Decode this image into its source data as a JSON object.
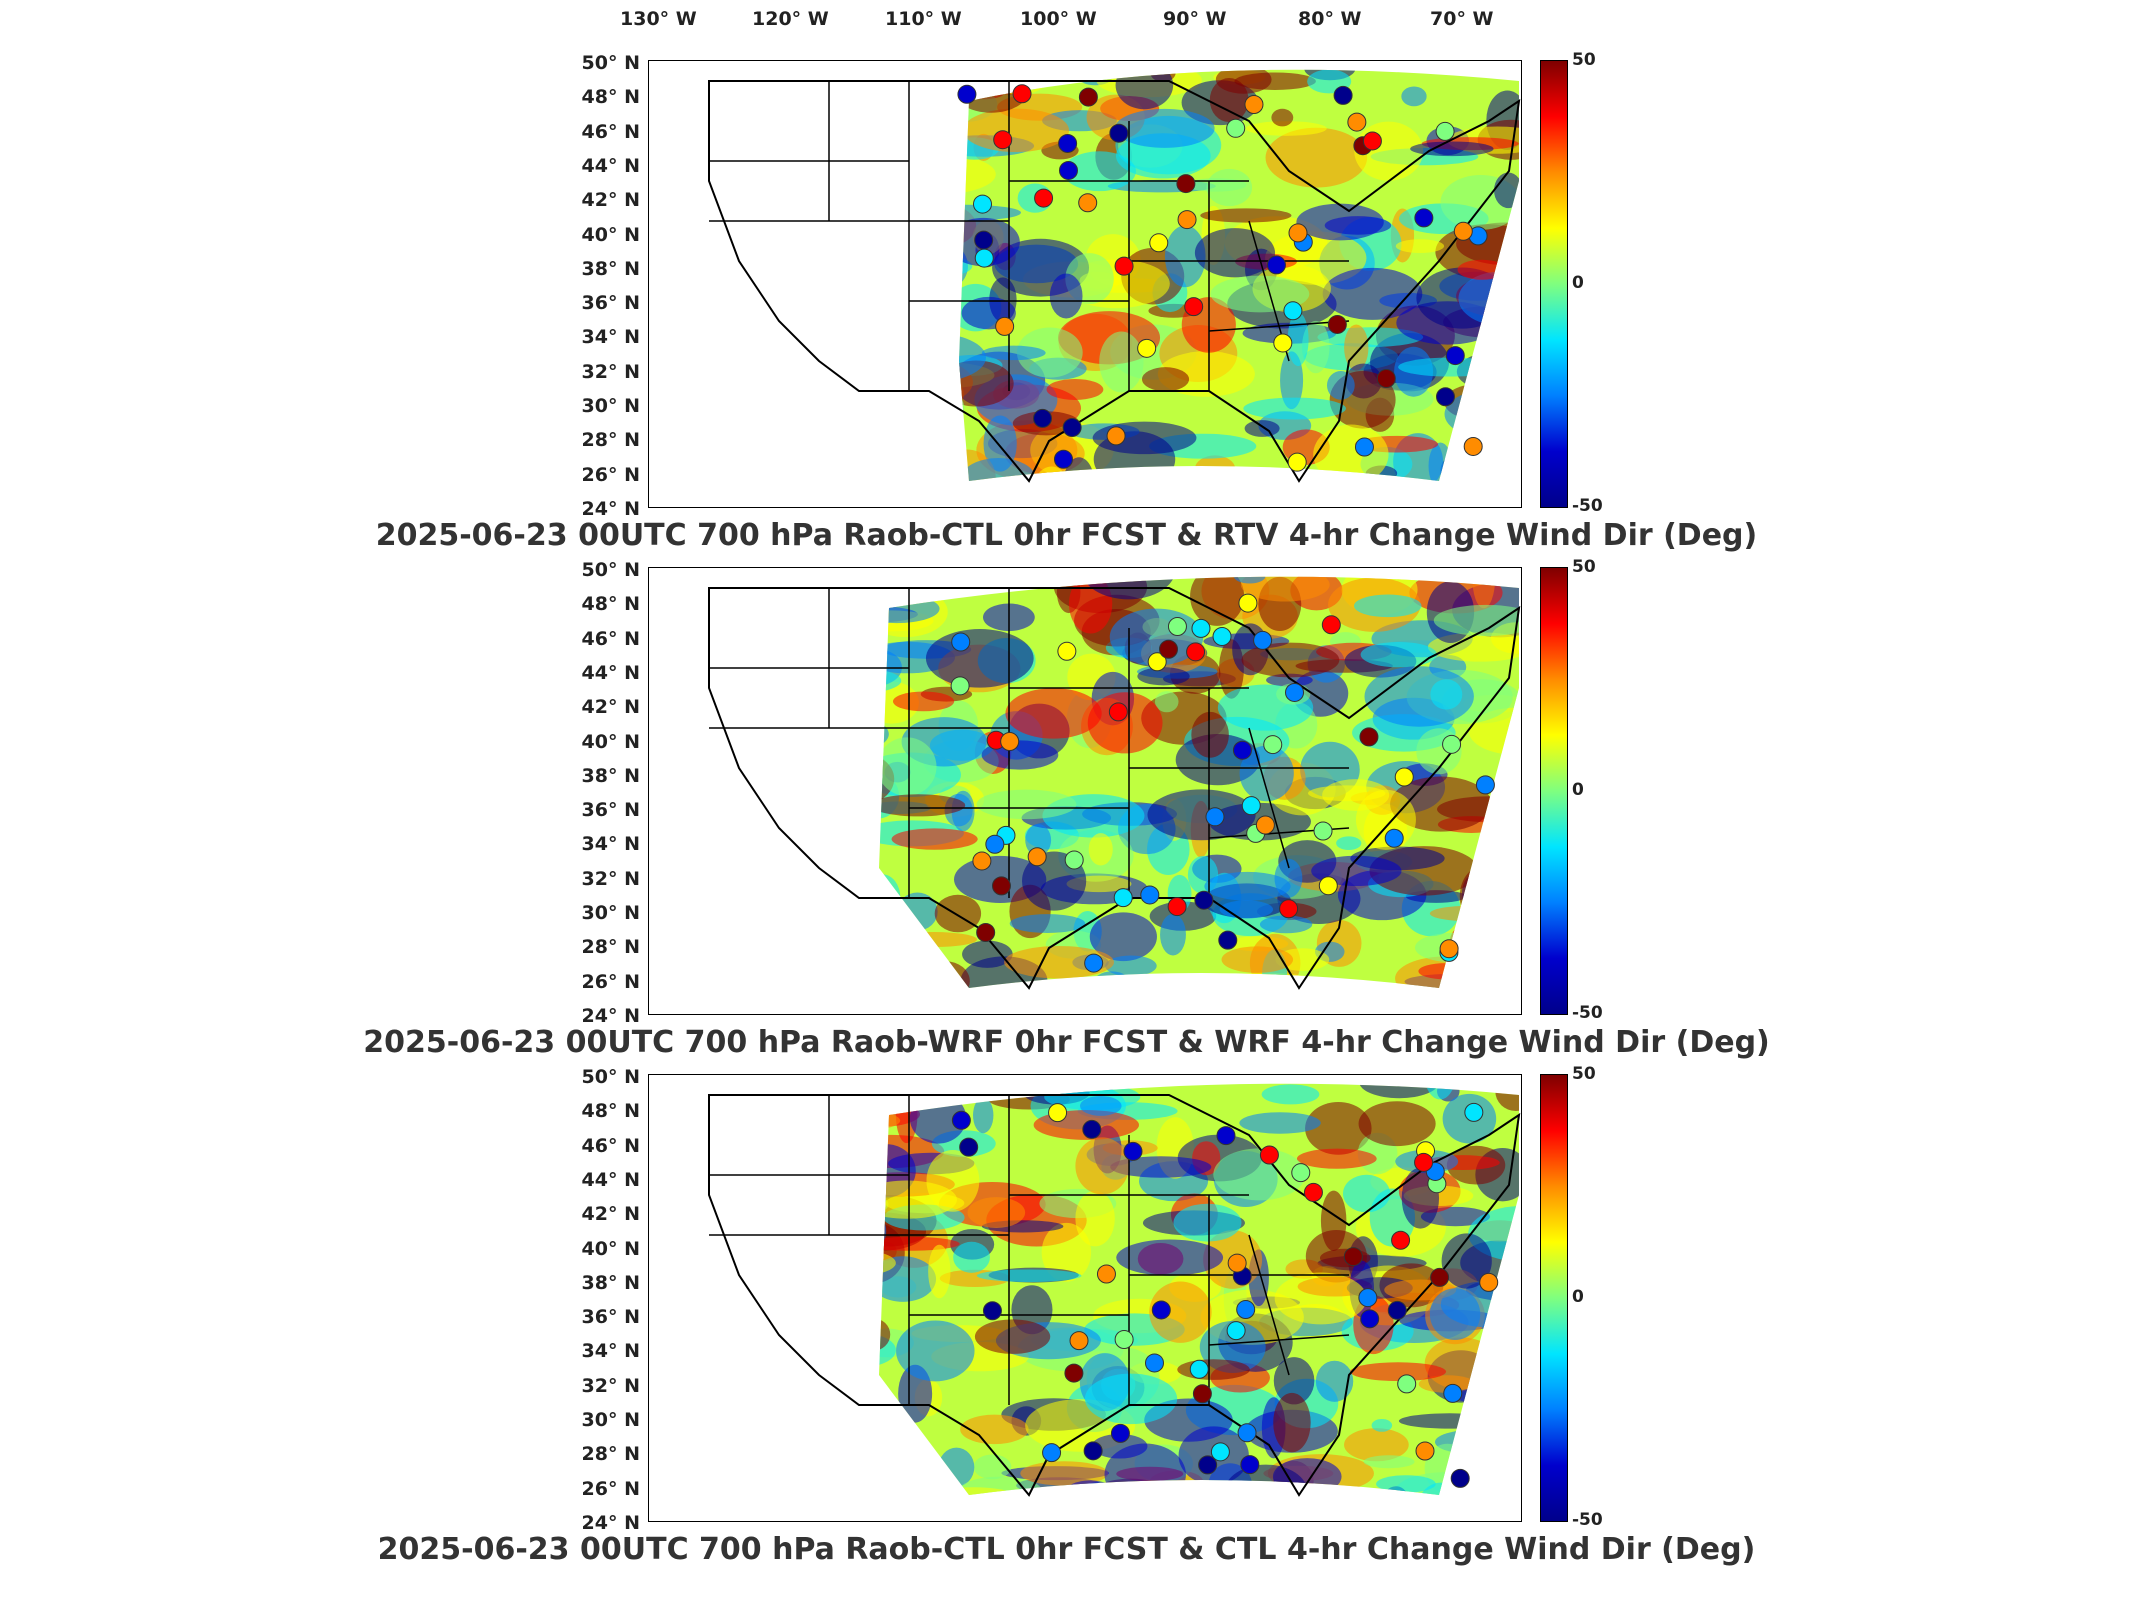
{
  "longitude_ticks": [
    "130° W",
    "120° W",
    "110° W",
    "100° W",
    "90° W",
    "80° W",
    "70° W"
  ],
  "latitude_ticks": [
    "50° N",
    "48° N",
    "46° N",
    "44° N",
    "42° N",
    "40° N",
    "38° N",
    "36° N",
    "34° N",
    "32° N",
    "30° N",
    "28° N",
    "26° N",
    "24° N"
  ],
  "colorbar": {
    "max_label": "50",
    "mid_label": "0",
    "min_label": "-50",
    "colors": [
      "#7f0000",
      "#ff0000",
      "#ff8c00",
      "#ffff00",
      "#7fff7f",
      "#00e5ff",
      "#0080ff",
      "#0000cd",
      "#00008b"
    ]
  },
  "panels": [
    {
      "title": "2025-06-23 00UTC 700 hPa Raob-CTL 0hr FCST & RTV 4-hr Change Wind Dir (Deg)"
    },
    {
      "title": "2025-06-23 00UTC 700 hPa Raob-WRF 0hr FCST & WRF 4-hr Change Wind Dir (Deg)"
    },
    {
      "title": "2025-06-23 00UTC 700 hPa Raob-CTL 0hr FCST & CTL 4-hr Change Wind Dir (Deg)"
    }
  ]
}
